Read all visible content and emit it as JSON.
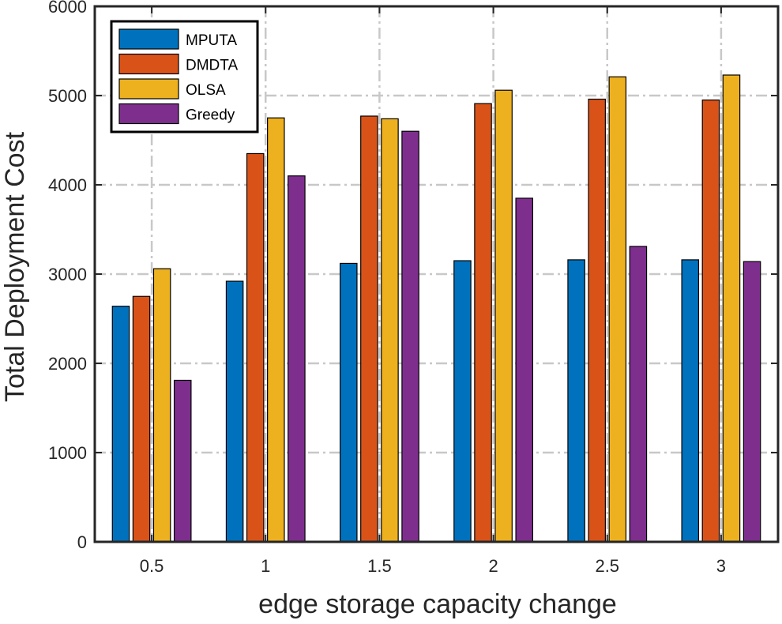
{
  "chart_data": {
    "type": "bar",
    "categories": [
      "0.5",
      "1",
      "1.5",
      "2",
      "2.5",
      "3"
    ],
    "series": [
      {
        "name": "MPUTA",
        "color": "#0072BD",
        "values": [
          2640,
          2920,
          3120,
          3150,
          3160,
          3160
        ]
      },
      {
        "name": "DMDTA",
        "color": "#D95319",
        "values": [
          2750,
          4350,
          4770,
          4910,
          4960,
          4950
        ]
      },
      {
        "name": "OLSA",
        "color": "#EDB120",
        "values": [
          3060,
          4750,
          4740,
          5060,
          5210,
          5230
        ]
      },
      {
        "name": "Greedy",
        "color": "#7E2F8E",
        "values": [
          1810,
          4100,
          4600,
          3850,
          3310,
          3140
        ]
      }
    ],
    "yticks": [
      "0",
      "1000",
      "2000",
      "3000",
      "4000",
      "5000",
      "6000"
    ],
    "xlabel": "edge storage capacity change",
    "ylabel": "Total Deployment Cost",
    "ylim": [
      0,
      6000
    ],
    "grid": true,
    "legend_position": "top-left"
  }
}
